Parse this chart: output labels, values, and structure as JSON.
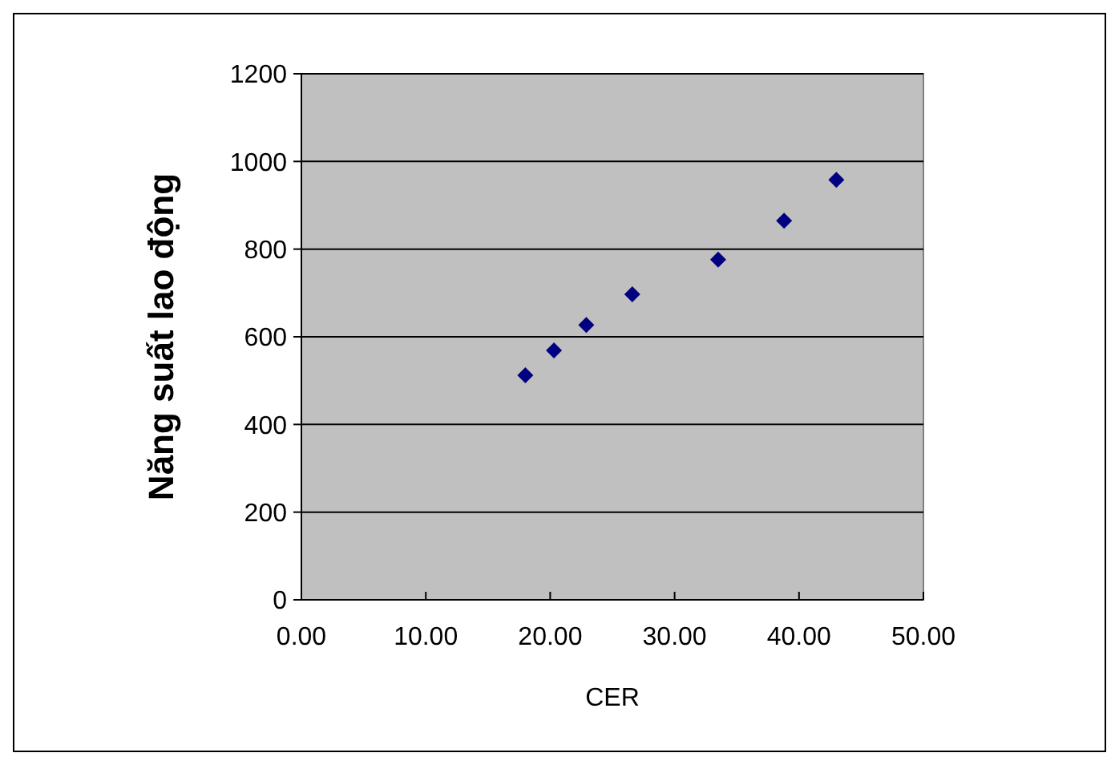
{
  "chart_data": {
    "type": "scatter",
    "xlabel": "CER",
    "ylabel": "Năng suất lao động",
    "x": [
      18.0,
      20.3,
      22.9,
      26.6,
      33.5,
      38.8,
      43.0
    ],
    "series": [
      {
        "color": "#000080",
        "values": [
          512,
          569,
          627,
          697,
          776,
          865,
          958
        ]
      }
    ],
    "xlim": [
      0,
      50
    ],
    "xticks": [
      {
        "value": 0,
        "label": "0.00"
      },
      {
        "value": 10,
        "label": "10.00"
      },
      {
        "value": 20,
        "label": "20.00"
      },
      {
        "value": 30,
        "label": "30.00"
      },
      {
        "value": 40,
        "label": "40.00"
      },
      {
        "value": 50,
        "label": "50.00"
      }
    ],
    "ylim": [
      0,
      1200
    ],
    "yticks": [
      0,
      200,
      400,
      600,
      800,
      1000,
      1200
    ],
    "grid": "y",
    "marker": "diamond"
  }
}
